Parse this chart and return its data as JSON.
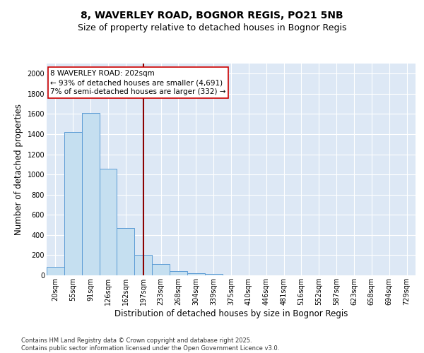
{
  "title1": "8, WAVERLEY ROAD, BOGNOR REGIS, PO21 5NB",
  "title2": "Size of property relative to detached houses in Bognor Regis",
  "xlabel": "Distribution of detached houses by size in Bognor Regis",
  "ylabel": "Number of detached properties",
  "categories": [
    "20sqm",
    "55sqm",
    "91sqm",
    "126sqm",
    "162sqm",
    "197sqm",
    "233sqm",
    "268sqm",
    "304sqm",
    "339sqm",
    "375sqm",
    "410sqm",
    "446sqm",
    "481sqm",
    "516sqm",
    "552sqm",
    "587sqm",
    "623sqm",
    "658sqm",
    "694sqm",
    "729sqm"
  ],
  "values": [
    85,
    1420,
    1610,
    1055,
    470,
    205,
    110,
    42,
    20,
    12,
    0,
    0,
    0,
    0,
    0,
    0,
    0,
    0,
    0,
    0,
    0
  ],
  "bar_color": "#c5dff0",
  "bar_edge_color": "#5b9bd5",
  "vline_x_index": 5,
  "vline_color": "#8b0000",
  "annotation_line1": "8 WAVERLEY ROAD: 202sqm",
  "annotation_line2": "← 93% of detached houses are smaller (4,691)",
  "annotation_line3": "7% of semi-detached houses are larger (332) →",
  "annotation_box_color": "white",
  "annotation_box_edge": "#cc0000",
  "ylim": [
    0,
    2100
  ],
  "yticks": [
    0,
    200,
    400,
    600,
    800,
    1000,
    1200,
    1400,
    1600,
    1800,
    2000
  ],
  "bg_color": "#dde8f5",
  "grid_color": "white",
  "footer": "Contains HM Land Registry data © Crown copyright and database right 2025.\nContains public sector information licensed under the Open Government Licence v3.0.",
  "title_fontsize": 10,
  "subtitle_fontsize": 9,
  "tick_fontsize": 7,
  "label_fontsize": 8.5,
  "ann_fontsize": 7.5,
  "footer_fontsize": 6
}
